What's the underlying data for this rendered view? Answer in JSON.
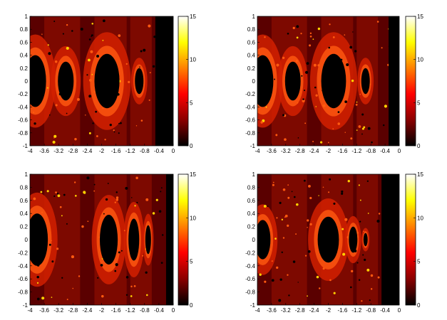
{
  "chart_data": [
    {
      "type": "heatmap",
      "xlim": [
        -4,
        0
      ],
      "ylim": [
        -1,
        1
      ],
      "x_ticks": [
        -4,
        -3.6,
        -3.2,
        -2.8,
        -2.4,
        -2,
        -1.6,
        -1.2,
        -0.8,
        -0.4,
        0
      ],
      "x_tick_labels": [
        "-4",
        "-3.6",
        "-3.2",
        "-2.8",
        "-2.4",
        "-2",
        "-1.6",
        "-1.2",
        "-0.8",
        "-0.4",
        "0"
      ],
      "y_ticks": [
        -1,
        -0.8,
        -0.6,
        -0.4,
        -0.2,
        0,
        0.2,
        0.4,
        0.6,
        0.8,
        1
      ],
      "y_tick_labels": [
        "-1",
        "-0.8",
        "-0.6",
        "-0.4",
        "-0.2",
        "0",
        "0.2",
        "0.4",
        "0.6",
        "0.8",
        "1"
      ],
      "colorbar": {
        "range": [
          0,
          15
        ],
        "ticks": [
          0,
          5,
          10,
          15
        ],
        "tick_labels": [
          "0",
          "5",
          "10",
          "15"
        ],
        "colormap": "hot"
      },
      "black_regions": [
        {
          "x_range": [
            -0.5,
            0
          ],
          "y_range": [
            -1,
            1
          ]
        },
        {
          "cx": -3.85,
          "cy": 0,
          "rx": 0.3,
          "ry": 0.4
        },
        {
          "cx": -3.0,
          "cy": 0,
          "rx": 0.22,
          "ry": 0.3
        },
        {
          "cx": -1.85,
          "cy": 0,
          "rx": 0.35,
          "ry": 0.42
        },
        {
          "cx": -0.95,
          "cy": 0,
          "rx": 0.12,
          "ry": 0.2
        }
      ]
    },
    {
      "type": "heatmap",
      "xlim": [
        -4,
        0
      ],
      "ylim": [
        -1,
        1
      ],
      "x_ticks": [
        -4,
        -3.6,
        -3.2,
        -2.8,
        -2.4,
        -2,
        -1.6,
        -1.2,
        -0.8,
        -0.4,
        0
      ],
      "x_tick_labels": [
        "-4",
        "-3.6",
        "-3.2",
        "-2.8",
        "-2.4",
        "-2",
        "-1.6",
        "-1.2",
        "-0.8",
        "-0.4",
        "0"
      ],
      "y_ticks": [
        -1,
        -0.8,
        -0.6,
        -0.4,
        -0.2,
        0,
        0.2,
        0.4,
        0.6,
        0.8,
        1
      ],
      "y_tick_labels": [
        "-1",
        "-0.8",
        "-0.6",
        "-0.4",
        "-0.2",
        "0",
        "0.2",
        "0.4",
        "0.6",
        "0.8",
        "1"
      ],
      "colorbar": {
        "range": [
          0,
          15
        ],
        "ticks": [
          0,
          5,
          10,
          15
        ],
        "tick_labels": [
          "0",
          "5",
          "10",
          "15"
        ],
        "colormap": "hot"
      },
      "black_regions": [
        {
          "x_range": [
            -0.3,
            0
          ],
          "y_range": [
            -1,
            1
          ]
        },
        {
          "cx": -3.85,
          "cy": 0,
          "rx": 0.3,
          "ry": 0.4
        },
        {
          "cx": -3.0,
          "cy": 0,
          "rx": 0.22,
          "ry": 0.3
        },
        {
          "cx": -1.85,
          "cy": 0,
          "rx": 0.35,
          "ry": 0.42
        },
        {
          "cx": -0.95,
          "cy": 0,
          "rx": 0.12,
          "ry": 0.2
        }
      ]
    },
    {
      "type": "heatmap",
      "xlim": [
        -4,
        0
      ],
      "ylim": [
        -1,
        1
      ],
      "x_ticks": [
        -4,
        -3.6,
        -3.2,
        -2.8,
        -2.4,
        -2,
        -1.6,
        -1.2,
        -0.8,
        -0.4,
        0
      ],
      "x_tick_labels": [
        "-4",
        "-3.6",
        "-3.2",
        "-2.8",
        "-2.4",
        "-2",
        "-1.6",
        "-1.2",
        "-0.8",
        "-0.4",
        "0"
      ],
      "y_ticks": [
        -1,
        -0.8,
        -0.6,
        -0.4,
        -0.2,
        0,
        0.2,
        0.4,
        0.6,
        0.8,
        1
      ],
      "y_tick_labels": [
        "-1",
        "-0.8",
        "-0.6",
        "-0.4",
        "-0.2",
        "0",
        "0.2",
        "0.4",
        "0.6",
        "0.8",
        "1"
      ],
      "colorbar": {
        "range": [
          0,
          15
        ],
        "ticks": [
          0,
          5,
          10,
          15
        ],
        "tick_labels": [
          "0",
          "5",
          "10",
          "15"
        ],
        "colormap": "hot"
      },
      "black_regions": [
        {
          "x_range": [
            -0.2,
            0
          ],
          "y_range": [
            -1,
            1
          ]
        },
        {
          "cx": -3.8,
          "cy": 0,
          "rx": 0.3,
          "ry": 0.4
        },
        {
          "cx": -1.8,
          "cy": 0,
          "rx": 0.25,
          "ry": 0.38
        },
        {
          "cx": -1.1,
          "cy": 0,
          "rx": 0.15,
          "ry": 0.32
        },
        {
          "cx": -0.7,
          "cy": 0,
          "rx": 0.08,
          "ry": 0.22
        }
      ]
    },
    {
      "type": "heatmap",
      "xlim": [
        -4,
        0
      ],
      "ylim": [
        -1,
        1
      ],
      "x_ticks": [
        -4,
        -3.6,
        -3.2,
        -2.8,
        -2.4,
        -2,
        -1.6,
        -1.2,
        -0.8,
        -0.4,
        0
      ],
      "x_tick_labels": [
        "-4",
        "-3.6",
        "-3.2",
        "-2.8",
        "-2.4",
        "-2",
        "-1.6",
        "-1.2",
        "-0.8",
        "-0.4",
        "0"
      ],
      "y_ticks": [
        -1,
        -0.8,
        -0.6,
        -0.4,
        -0.2,
        0,
        0.2,
        0.4,
        0.6,
        0.8,
        1
      ],
      "y_tick_labels": [
        "-1",
        "-0.8",
        "-0.6",
        "-0.4",
        "-0.2",
        "0",
        "0.2",
        "0.4",
        "0.6",
        "0.8",
        "1"
      ],
      "colorbar": {
        "range": [
          0,
          15
        ],
        "ticks": [
          0,
          5,
          10,
          15
        ],
        "tick_labels": [
          "0",
          "5",
          "10",
          "15"
        ],
        "colormap": "hot"
      },
      "black_regions": [
        {
          "x_range": [
            -0.5,
            0
          ],
          "y_range": [
            -1,
            1
          ]
        },
        {
          "cx": -3.85,
          "cy": 0,
          "rx": 0.22,
          "ry": 0.3
        },
        {
          "cx": -2.0,
          "cy": 0,
          "rx": 0.3,
          "ry": 0.35
        },
        {
          "cx": -1.3,
          "cy": 0,
          "rx": 0.12,
          "ry": 0.2
        },
        {
          "cx": -0.95,
          "cy": 0,
          "rx": 0.06,
          "ry": 0.1
        }
      ]
    }
  ],
  "colors": {
    "colormap_hot": [
      "#000000",
      "#8a0000",
      "#ff0000",
      "#ff8000",
      "#ffff00",
      "#ffffff"
    ],
    "background": "#5a0000",
    "mid": "#9a1000",
    "fill": "#d22000",
    "bright": "#ff5a10",
    "black": "#000000"
  }
}
